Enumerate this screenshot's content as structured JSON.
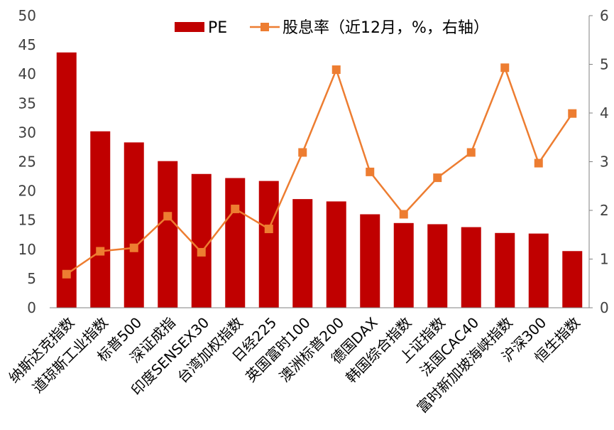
{
  "chart_data": {
    "type": "bar",
    "categories": [
      "纳斯达克指数",
      "道琼斯工业指数",
      "标普500",
      "深证成指",
      "印度SENSEX30",
      "台湾加权指数",
      "日经225",
      "英国富时100",
      "澳洲标普200",
      "德国DAX",
      "韩国综合指数",
      "上证指数",
      "法国CAC40",
      "富时新加坡海峡指数",
      "沪深300",
      "恒生指数"
    ],
    "series": [
      {
        "name": "PE",
        "type": "bar",
        "axis": "left",
        "color": "#C00000",
        "values": [
          43.7,
          30.2,
          28.3,
          25.1,
          22.9,
          22.2,
          21.7,
          18.6,
          18.2,
          16.0,
          14.5,
          14.3,
          13.8,
          12.8,
          12.7,
          9.7
        ]
      },
      {
        "name": "股息率（近12月，%，右轴）",
        "type": "line",
        "axis": "right",
        "color": "#ED7D31",
        "values": [
          0.69,
          1.16,
          1.23,
          1.88,
          1.14,
          2.03,
          1.62,
          3.19,
          4.89,
          2.79,
          1.92,
          2.67,
          3.19,
          4.93,
          2.97,
          3.99
        ]
      }
    ],
    "y_left": {
      "lim": [
        0,
        50
      ],
      "ticks": [
        "0",
        "5",
        "10",
        "15",
        "20",
        "25",
        "30",
        "35",
        "40",
        "45",
        "50"
      ]
    },
    "y_right": {
      "lim": [
        0,
        6
      ],
      "ticks": [
        "0",
        "1",
        "2",
        "3",
        "4",
        "5",
        "6"
      ]
    },
    "legend": {
      "placement": "top-center",
      "labels": [
        "PE",
        "股息率（近12月，%，右轴）"
      ]
    },
    "grid": false
  }
}
